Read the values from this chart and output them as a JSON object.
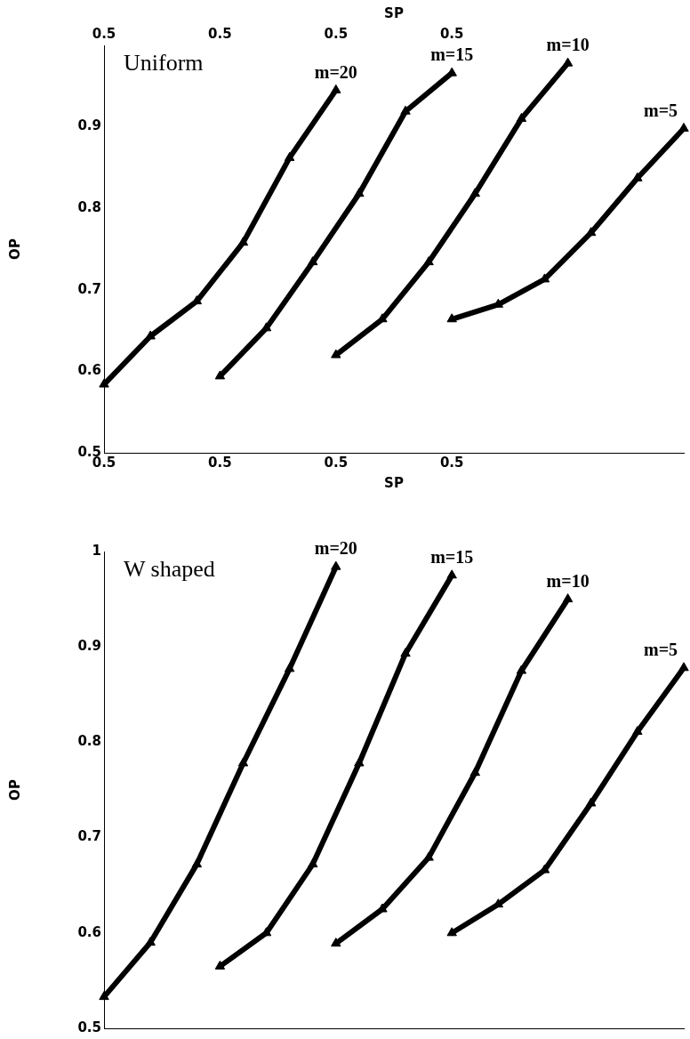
{
  "chart_data": [
    {
      "type": "line",
      "title": "Uniform",
      "xlabel": "SP",
      "x2label": "SP",
      "ylabel": "OP",
      "legend": false,
      "grid": false,
      "marker": "triangle",
      "line_style": "solid",
      "categories": [
        "0.5",
        null,
        null,
        null,
        null,
        "0.5",
        null,
        null,
        null,
        null,
        "0.5",
        null,
        null,
        null,
        null,
        "0.5",
        null,
        null,
        null,
        null,
        null,
        null,
        null,
        null,
        null,
        null
      ],
      "ylim": [
        0.5,
        1.0
      ],
      "yticks": [
        0.5,
        0.6,
        0.7,
        0.8,
        0.9
      ],
      "series": [
        {
          "name": "m=20",
          "color": "#000000",
          "values": [
            0.584,
            null,
            0.643,
            null,
            0.686,
            null,
            0.758,
            null,
            0.862,
            null,
            0.945,
            null,
            null,
            null,
            null,
            null,
            null,
            null,
            null,
            null,
            null,
            null,
            null,
            null,
            null,
            null
          ]
        },
        {
          "name": "m=15",
          "color": "#000000",
          "values": [
            null,
            null,
            null,
            null,
            null,
            0.594,
            null,
            0.653,
            null,
            0.734,
            null,
            0.818,
            null,
            0.919,
            null,
            0.966,
            null,
            null,
            null,
            null,
            null,
            null,
            null,
            null,
            null,
            null
          ]
        },
        {
          "name": "m=10",
          "color": "#000000",
          "values": [
            null,
            null,
            null,
            null,
            null,
            null,
            null,
            null,
            null,
            null,
            0.62,
            null,
            0.664,
            null,
            0.734,
            null,
            0.818,
            null,
            0.91,
            null,
            0.978,
            null,
            null,
            null,
            null,
            null
          ]
        },
        {
          "name": "m=5",
          "color": "#000000",
          "values": [
            null,
            null,
            null,
            null,
            null,
            null,
            null,
            null,
            null,
            null,
            null,
            null,
            null,
            null,
            null,
            0.664,
            null,
            0.682,
            null,
            0.713,
            null,
            0.77,
            null,
            0.837,
            null,
            0.898
          ]
        }
      ]
    },
    {
      "type": "line",
      "title": "W shaped",
      "ylabel": "OP",
      "legend": false,
      "grid": false,
      "marker": "triangle",
      "line_style": "solid",
      "tick_labels": "y",
      "categories": [
        null,
        null,
        null,
        null,
        null,
        null,
        null,
        null,
        null,
        null,
        null,
        null,
        null,
        null,
        null,
        null,
        null,
        null,
        null,
        null,
        null,
        null,
        null,
        null,
        null,
        null
      ],
      "ylim": [
        0.5,
        1.0
      ],
      "yticks": [
        0.5,
        0.6,
        0.7,
        0.8,
        0.9,
        1
      ],
      "series": [
        {
          "name": "m=20",
          "color": "#000000",
          "values": [
            0.533,
            null,
            0.59,
            null,
            0.672,
            null,
            0.778,
            null,
            0.877,
            null,
            0.984,
            null,
            null,
            null,
            null,
            null,
            null,
            null,
            null,
            null,
            null,
            null,
            null,
            null,
            null,
            null
          ]
        },
        {
          "name": "m=15",
          "color": "#000000",
          "values": [
            null,
            null,
            null,
            null,
            null,
            0.565,
            null,
            0.6,
            null,
            0.672,
            null,
            0.778,
            null,
            0.893,
            null,
            0.975,
            null,
            null,
            null,
            null,
            null,
            null,
            null,
            null,
            null,
            null
          ]
        },
        {
          "name": "m=10",
          "color": "#000000",
          "values": [
            null,
            null,
            null,
            null,
            null,
            null,
            null,
            null,
            null,
            null,
            0.589,
            null,
            0.625,
            null,
            0.679,
            null,
            0.768,
            null,
            0.875,
            null,
            0.95,
            null,
            null,
            null,
            null,
            null
          ]
        },
        {
          "name": "m=5",
          "color": "#000000",
          "values": [
            null,
            null,
            null,
            null,
            null,
            null,
            null,
            null,
            null,
            null,
            null,
            null,
            null,
            null,
            null,
            0.6,
            null,
            0.63,
            null,
            0.666,
            null,
            0.736,
            null,
            0.811,
            null,
            0.878
          ]
        }
      ]
    }
  ]
}
